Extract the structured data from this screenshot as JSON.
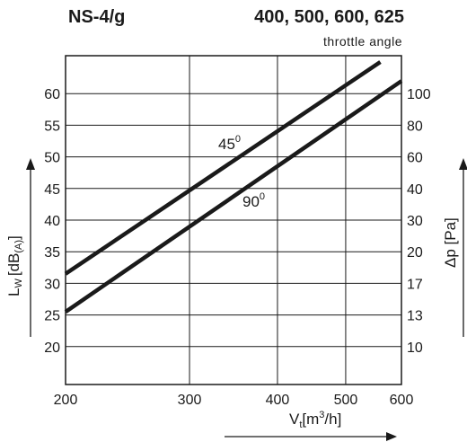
{
  "chart_data": {
    "type": "line",
    "title": "NS-4/g",
    "title_right": "400, 500, 600, 625",
    "subtitle": "throttle angle",
    "x": {
      "label": "V",
      "label_sub": "t",
      "label_unit_pre": "[m",
      "label_unit_sup": "3",
      "label_unit_post": "/h]",
      "scale": "log",
      "range": [
        200,
        600
      ],
      "ticks": [
        200,
        300,
        400,
        500,
        600
      ],
      "tick_labels": [
        "200",
        "300",
        "400",
        "500",
        "600"
      ]
    },
    "y_left": {
      "label": "L",
      "label_sub": "W",
      "label_unit": "[dB",
      "label_unit_sub": "(A)",
      "label_close": "]",
      "range": [
        14,
        66
      ],
      "ticks": [
        20,
        25,
        30,
        35,
        40,
        45,
        50,
        55,
        60
      ],
      "tick_labels": [
        "20",
        "25",
        "30",
        "35",
        "40",
        "45",
        "50",
        "55",
        "60"
      ]
    },
    "y_right": {
      "label": "Δp [Pa]",
      "ticks": [
        10,
        13,
        17,
        20,
        30,
        40,
        60,
        80,
        100
      ],
      "tick_labels": [
        "10",
        "13",
        "17",
        "20",
        "30",
        "40",
        "60",
        "80",
        "100"
      ]
    },
    "grid": true,
    "series": [
      {
        "name": "45",
        "name_sup": "0",
        "x": [
          200,
          560
        ],
        "y": [
          31.5,
          65
        ]
      },
      {
        "name": "90",
        "name_sup": "0",
        "x": [
          200,
          600
        ],
        "y": [
          25.5,
          62
        ]
      }
    ]
  }
}
